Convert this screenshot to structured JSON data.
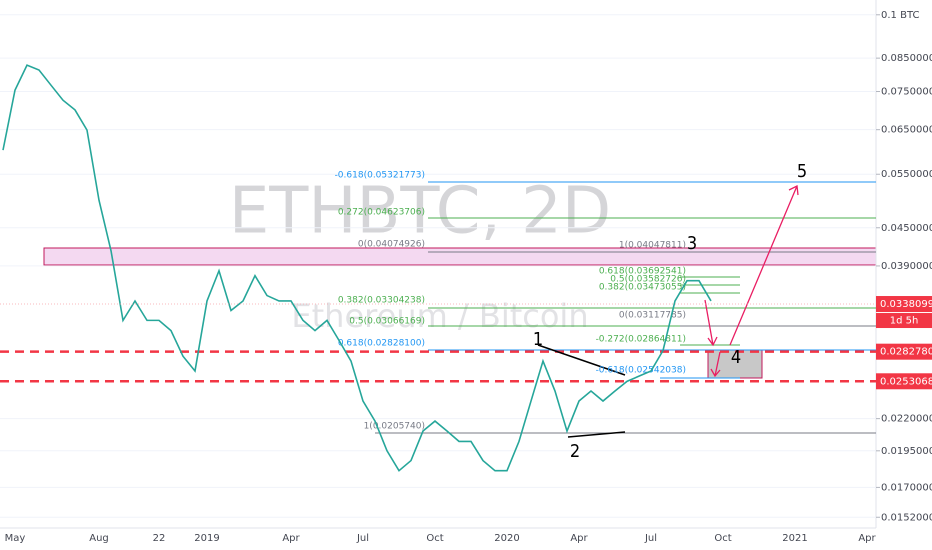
{
  "chart_data": {
    "type": "line",
    "color": "#26a69a",
    "log_scale": true,
    "grid": true,
    "watermark": [
      "ETHBTC, 2D",
      "Ethereum / Bitcoin"
    ],
    "categories": [
      null,
      "May",
      null,
      null,
      null,
      null,
      null,
      null,
      "Aug",
      null,
      null,
      null,
      null,
      "22",
      null,
      null,
      null,
      "2019",
      null,
      null,
      null,
      null,
      null,
      null,
      "Apr",
      null,
      null,
      null,
      null,
      null,
      "Jul",
      null,
      null,
      null,
      null,
      null,
      "Oct",
      null,
      null,
      null,
      null,
      null,
      "2020",
      null,
      null,
      null,
      null,
      null,
      "Apr",
      null,
      null,
      null,
      null,
      null,
      "Jul",
      null,
      null,
      null,
      null,
      null,
      "Oct",
      null,
      null,
      null,
      null,
      null,
      "2021",
      null,
      null,
      null,
      null,
      null,
      "Apr"
    ],
    "values": [
      0.0602,
      0.0754,
      0.0828,
      0.0813,
      0.0768,
      0.0726,
      0.07,
      0.0649,
      0.0499,
      0.0413,
      0.0318,
      0.0342,
      0.0318,
      0.0318,
      0.0306,
      0.0278,
      0.0263,
      0.0342,
      0.0383,
      0.033,
      0.0342,
      0.0376,
      0.0349,
      0.0342,
      0.0342,
      0.0318,
      0.0306,
      0.0318,
      0.0295,
      0.0273,
      0.0235,
      0.0218,
      0.0195,
      0.0181,
      0.0188,
      0.021,
      0.0218,
      0.021,
      0.0202,
      0.0202,
      0.0188,
      0.0181,
      0.0181,
      0.0202,
      0.0235,
      0.0273,
      0.0244,
      0.021,
      0.0235,
      0.0244,
      0.0235,
      0.0244,
      0.0253,
      0.0258,
      0.0263,
      0.0284,
      0.0342,
      0.0369,
      0.0369,
      0.0342,
      null,
      null,
      null,
      null,
      null,
      null,
      null,
      null,
      null,
      null,
      null,
      null,
      null
    ],
    "ylim": [
      0.0146,
      0.1057
    ],
    "yticks": [
      {
        "value": 0.1,
        "label": "0.1 BTC"
      },
      {
        "value": 0.085,
        "label": "0.08500000"
      },
      {
        "value": 0.075,
        "label": "0.07500000"
      },
      {
        "value": 0.065,
        "label": "0.06500000"
      },
      {
        "value": 0.055,
        "label": "0.05500000"
      },
      {
        "value": 0.045,
        "label": "0.04500000"
      },
      {
        "value": 0.039,
        "label": "0.03900000"
      },
      {
        "value": 0.022,
        "label": "0.02200000"
      },
      {
        "value": 0.0195,
        "label": "0.01950000"
      },
      {
        "value": 0.017,
        "label": "0.01700000"
      },
      {
        "value": 0.0152,
        "label": "0.01520000"
      }
    ],
    "price_markers": [
      {
        "value": 0.0338099,
        "label": "0.03380990"
      },
      {
        "value": 0.02827803,
        "label": "0.02827803"
      },
      {
        "value": 0.02530684,
        "label": "0.02530684"
      }
    ],
    "countdown": "1d 5h",
    "annotations": [
      "-0.618(0.05321773)",
      "0.272(0.04623706)",
      "0(0.04074926)",
      "0.382(0.03304238)",
      "0.5(0.03066169)",
      "0.618(0.02828100)",
      "1(0.0205740)",
      "1(0.04047811)",
      "0.618(0.03692541)",
      "0.5(0.03582726)",
      "0.382(0.03473055)",
      "0(0.03117785)",
      "-0.272(0.02864811)",
      "-0.618(0.02542038)"
    ],
    "wave_labels": [
      "1",
      "2",
      "3",
      "4",
      "5"
    ]
  }
}
